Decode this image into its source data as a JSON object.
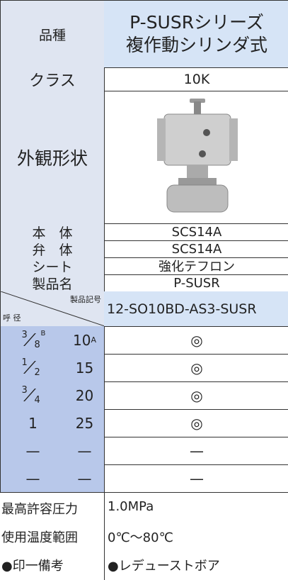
{
  "header": {
    "label": "品種",
    "title_lines": [
      "P-SUSRシリーズ",
      "複作動シリンダ式"
    ]
  },
  "class": {
    "label": "クラス",
    "value": "10K"
  },
  "appearance": {
    "label": "外観形状"
  },
  "materials": [
    {
      "label": "本　体",
      "value": "SCS14A"
    },
    {
      "label": "弁　体",
      "value": "SCS14A"
    },
    {
      "label": "シート",
      "value": "強化テフロン"
    },
    {
      "label": "製品名",
      "value": "P-SUSR"
    }
  ],
  "size_header": {
    "size_label": "呼 径",
    "code_label": "製品記号",
    "code": "12-SO10BD-AS3-SUSR"
  },
  "sizes": [
    {
      "inch": {
        "numerator": "3",
        "denominator": "8",
        "unit": "B"
      },
      "mm": {
        "value": "10",
        "unit": "A"
      },
      "mark": "◎"
    },
    {
      "inch": {
        "numerator": "1",
        "denominator": "2"
      },
      "mm": {
        "value": "15"
      },
      "mark": "◎"
    },
    {
      "inch": {
        "numerator": "3",
        "denominator": "4"
      },
      "mm": {
        "value": "20"
      },
      "mark": "◎"
    },
    {
      "inch": {
        "whole": "1"
      },
      "mm": {
        "value": "25"
      },
      "mark": "◎"
    },
    {
      "inch": {
        "whole": "—"
      },
      "mm": {
        "value": "—"
      },
      "mark": "—"
    },
    {
      "inch": {
        "whole": "—"
      },
      "mm": {
        "value": "—"
      },
      "mark": "—"
    }
  ],
  "notes": [
    {
      "label": "最高許容圧力",
      "value": "1.0MPa"
    },
    {
      "label": "使用温度範囲",
      "value": "0℃～80℃"
    },
    {
      "label": "●印一備考",
      "value": "●レデューストボア"
    }
  ]
}
